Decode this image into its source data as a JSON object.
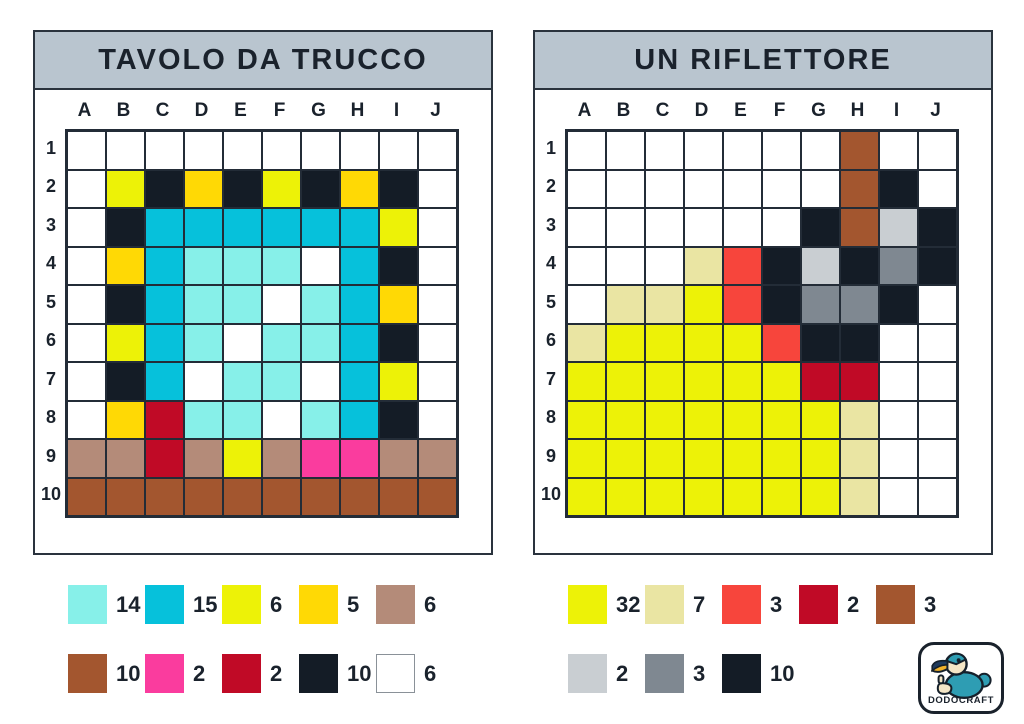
{
  "palette": {
    "W": "#FFFFFF",
    "Y": "#EDF207",
    "G": "#FFD905",
    "C": "#06C1DB",
    "L": "#87F0E9",
    "T": "#B48B79",
    "B": "#A3562F",
    "P": "#FA3C9E",
    "R": "#C00A26",
    "K": "#141C26",
    "M": "#EAE5A3",
    "E": "#F7453C",
    "S": "#C9CED2",
    "D": "#7F8891"
  },
  "palette_names": {
    "W": "white",
    "Y": "yellow",
    "G": "gold",
    "C": "cyan",
    "L": "light-cyan",
    "T": "tan",
    "B": "brown",
    "P": "pink",
    "R": "dark-red",
    "K": "black",
    "M": "cream",
    "E": "red",
    "S": "light-gray",
    "D": "gray"
  },
  "header_color": "#B9C5CF",
  "panels": [
    {
      "title": "TAVOLO DA TRUCCO",
      "column_labels": [
        "A",
        "B",
        "C",
        "D",
        "E",
        "F",
        "G",
        "H",
        "I",
        "J"
      ],
      "row_labels": [
        "1",
        "2",
        "3",
        "4",
        "5",
        "6",
        "7",
        "8",
        "9",
        "10"
      ],
      "grid": [
        "WWWWWWWWWW",
        "WYKGKYKGKW",
        "WKCCCCCCYW",
        "WGCLLLWCKW",
        "WKCLLWLCGW",
        "WYCLWLLCKW",
        "WKCWLLWCYW",
        "WGRLLWLCKW",
        "TTRTYTPPTT",
        "BBBBBBBBBB"
      ],
      "legend": [
        [
          {
            "color": "L",
            "count": "14"
          },
          {
            "color": "C",
            "count": "15"
          },
          {
            "color": "Y",
            "count": "6"
          },
          {
            "color": "G",
            "count": "5"
          },
          {
            "color": "T",
            "count": "6"
          }
        ],
        [
          {
            "color": "B",
            "count": "10"
          },
          {
            "color": "P",
            "count": "2"
          },
          {
            "color": "R",
            "count": "2"
          },
          {
            "color": "K",
            "count": "10"
          },
          {
            "color": "W",
            "count": "6"
          }
        ]
      ]
    },
    {
      "title": "UN RIFLETTORE",
      "column_labels": [
        "A",
        "B",
        "C",
        "D",
        "E",
        "F",
        "G",
        "H",
        "I",
        "J"
      ],
      "row_labels": [
        "1",
        "2",
        "3",
        "4",
        "5",
        "6",
        "7",
        "8",
        "9",
        "10"
      ],
      "grid": [
        "WWWWWWWBWW",
        "WWWWWWWBKW",
        "WWWWWWKBSK",
        "WWWMEKSKDK",
        "WMMYEKDDKW",
        "MYYYYEKKWW",
        "YYYYYYRRWW",
        "YYYYYYYMWW",
        "YYYYYYYMWW",
        "YYYYYYYMWW"
      ],
      "legend": [
        [
          {
            "color": "Y",
            "count": "32"
          },
          {
            "color": "M",
            "count": "7"
          },
          {
            "color": "E",
            "count": "3"
          },
          {
            "color": "R",
            "count": "2"
          },
          {
            "color": "B",
            "count": "3"
          }
        ],
        [
          {
            "color": "S",
            "count": "2"
          },
          {
            "color": "D",
            "count": "3"
          },
          {
            "color": "K",
            "count": "10"
          }
        ]
      ]
    }
  ],
  "logo": {
    "text": "DODOCRAFT"
  }
}
